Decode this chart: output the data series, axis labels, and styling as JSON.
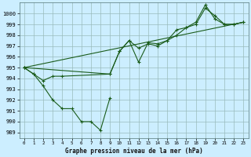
{
  "title": "Graphe pression niveau de la mer (hPa)",
  "background_color": "#cceeff",
  "grid_color": "#99bbbb",
  "line_color": "#1a5c1a",
  "xlim": [
    -0.5,
    23.5
  ],
  "ylim": [
    988.5,
    1001.0
  ],
  "yticks": [
    989,
    990,
    991,
    992,
    993,
    994,
    995,
    996,
    997,
    998,
    999,
    1000
  ],
  "xticks": [
    0,
    1,
    2,
    3,
    4,
    5,
    6,
    7,
    8,
    9,
    10,
    11,
    12,
    13,
    14,
    15,
    16,
    17,
    18,
    19,
    20,
    21,
    22,
    23
  ],
  "series_lower": {
    "x": [
      0,
      1,
      2,
      3,
      4,
      5,
      6,
      7,
      8,
      9
    ],
    "y": [
      995.0,
      994.4,
      993.3,
      992.0,
      991.2,
      991.2,
      990.0,
      990.0,
      989.2,
      992.2
    ]
  },
  "series_upper": {
    "x": [
      0,
      1,
      2,
      3,
      4,
      9,
      10,
      11,
      12,
      13,
      14,
      15,
      16,
      17,
      18,
      19,
      20,
      21,
      22,
      23
    ],
    "y": [
      995.0,
      994.4,
      993.8,
      994.2,
      994.2,
      994.4,
      996.5,
      997.5,
      995.5,
      997.3,
      997.2,
      997.5,
      998.5,
      998.7,
      999.2,
      1000.8,
      999.5,
      999.0,
      999.0,
      999.2
    ]
  },
  "series_mid": {
    "x": [
      0,
      9,
      10,
      11,
      12,
      13,
      14,
      15,
      16,
      17,
      18,
      19,
      20,
      21,
      22,
      23
    ],
    "y": [
      995.0,
      994.4,
      996.5,
      997.5,
      996.8,
      997.2,
      997.0,
      997.5,
      998.0,
      998.7,
      999.0,
      1000.5,
      999.8,
      999.0,
      999.0,
      999.2
    ]
  },
  "series_straight": {
    "x": [
      0,
      23
    ],
    "y": [
      995.0,
      999.2
    ]
  }
}
